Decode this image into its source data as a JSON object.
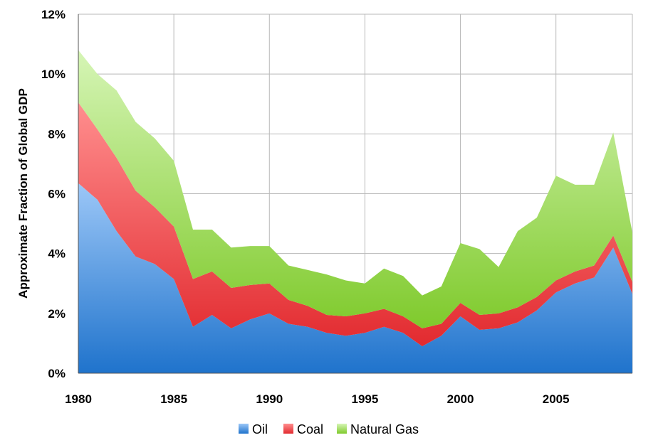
{
  "chart_data": {
    "type": "area",
    "stacked": true,
    "title": "",
    "xlabel": "",
    "ylabel": "Approximate Fraction of Global GDP",
    "x": [
      1980,
      1981,
      1982,
      1983,
      1984,
      1985,
      1986,
      1987,
      1988,
      1989,
      1990,
      1991,
      1992,
      1993,
      1994,
      1995,
      1996,
      1997,
      1998,
      1999,
      2000,
      2001,
      2002,
      2003,
      2004,
      2005,
      2006,
      2007,
      2008,
      2009
    ],
    "xlim": [
      1980,
      2009
    ],
    "ylim": [
      0,
      12
    ],
    "x_ticks": [
      1980,
      1985,
      1990,
      1995,
      2000,
      2005
    ],
    "x_tick_labels": [
      "1980",
      "1985",
      "1990",
      "1995",
      "2000",
      "2005"
    ],
    "y_ticks": [
      0,
      2,
      4,
      6,
      8,
      10,
      12
    ],
    "y_tick_labels": [
      "0%",
      "2%",
      "4%",
      "6%",
      "8%",
      "10%",
      "12%"
    ],
    "grid": true,
    "legend_position": "bottom",
    "series": [
      {
        "name": "Oil",
        "color": "#3f87d9",
        "values": [
          6.35,
          5.8,
          4.75,
          3.9,
          3.65,
          3.15,
          1.55,
          1.95,
          1.5,
          1.8,
          2.0,
          1.65,
          1.55,
          1.35,
          1.25,
          1.35,
          1.55,
          1.35,
          0.9,
          1.25,
          1.9,
          1.45,
          1.5,
          1.7,
          2.1,
          2.7,
          3.0,
          3.2,
          4.2,
          2.65
        ]
      },
      {
        "name": "Coal",
        "color": "#ec3b3e",
        "values": [
          2.7,
          2.35,
          2.45,
          2.2,
          1.9,
          1.75,
          1.6,
          1.45,
          1.35,
          1.15,
          1.0,
          0.8,
          0.7,
          0.6,
          0.65,
          0.65,
          0.6,
          0.55,
          0.6,
          0.4,
          0.45,
          0.5,
          0.5,
          0.5,
          0.45,
          0.4,
          0.4,
          0.4,
          0.4,
          0.4
        ]
      },
      {
        "name": "Natural Gas",
        "color": "#8fd13f",
        "values": [
          1.75,
          1.85,
          2.25,
          2.3,
          2.3,
          2.2,
          1.65,
          1.4,
          1.35,
          1.3,
          1.25,
          1.15,
          1.2,
          1.35,
          1.2,
          1.0,
          1.35,
          1.35,
          1.1,
          1.25,
          2.0,
          2.2,
          1.55,
          2.55,
          2.65,
          3.5,
          2.9,
          2.7,
          3.45,
          1.65
        ]
      }
    ]
  }
}
